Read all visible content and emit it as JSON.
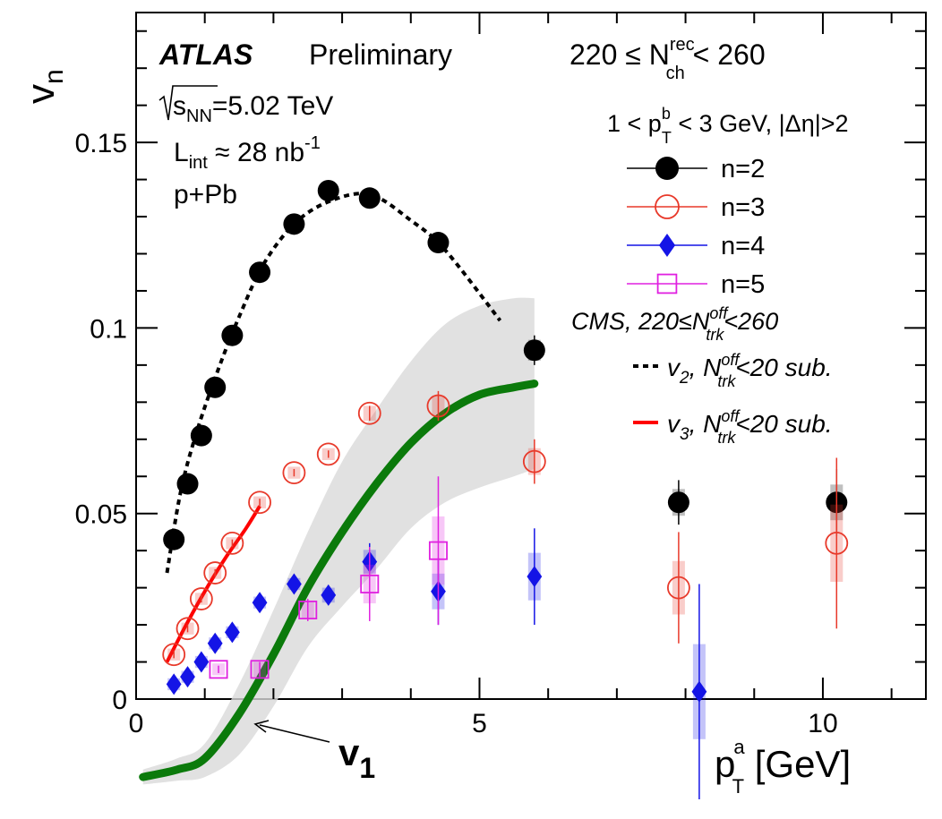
{
  "chart_data": {
    "type": "scatter",
    "xlim": [
      0,
      11.5
    ],
    "ylim": [
      0,
      0.185
    ],
    "xticks": [
      {
        "v": 0,
        "label": "0"
      },
      {
        "v": 5,
        "label": "5"
      },
      {
        "v": 10,
        "label": "10"
      }
    ],
    "yticks": [
      {
        "v": 0,
        "label": "0"
      },
      {
        "v": 0.05,
        "label": "0.05"
      },
      {
        "v": 0.1,
        "label": "0.1"
      },
      {
        "v": 0.15,
        "label": "0.15"
      }
    ],
    "ylabel": {
      "main": "v",
      "sub": "n"
    },
    "xlabel": {
      "main": "p",
      "sup": "a",
      "sub": "T",
      "unit": " [GeV]"
    },
    "labels": {
      "atlas": "ATLAS",
      "preliminary": "Preliminary",
      "energy": {
        "pre": "s",
        "sub": "NN",
        "post": "=5.02 TeV"
      },
      "lumi": {
        "pre": "L",
        "sub": "int",
        "post": " ≈ 28 nb",
        "sup": "-1"
      },
      "system": "p+Pb",
      "nch": {
        "pre": "220 ≤ N",
        "sup": "rec",
        "sub": "ch",
        "post": " < 260"
      },
      "ptb": {
        "pre": "1 < p",
        "sup": "b",
        "sub": "T",
        "post": " < 3 GeV, |Δη|>2"
      },
      "cms": {
        "pre": "CMS, 220≤N",
        "sup": "off",
        "sub": "trk",
        "post": "<260"
      },
      "v1": {
        "main": "v",
        "sub": "1"
      }
    },
    "legend": [
      {
        "name": "n=2",
        "marker": "filled-circle",
        "color": "#000000"
      },
      {
        "name": "n=3",
        "marker": "open-circle",
        "color": "#e8392a"
      },
      {
        "name": "n=4",
        "marker": "filled-diamond",
        "color": "#1414e6"
      },
      {
        "name": "n=5",
        "marker": "open-square",
        "color": "#e020e0"
      }
    ],
    "cms_legend": [
      {
        "main": "v",
        "sub": "2",
        "mid": ", N",
        "sup": "off",
        "sub2": "trk",
        "post": "<20 sub.",
        "color": "#000000",
        "dashed": true
      },
      {
        "main": "v",
        "sub": "3",
        "mid": ", N",
        "sup": "off",
        "sub2": "trk",
        "post": "<20 sub.",
        "color": "#ff0000",
        "dashed": false
      }
    ],
    "series": [
      {
        "name": "n=2",
        "color": "#000000",
        "marker": "filled-circle",
        "x": [
          0.55,
          0.75,
          0.95,
          1.15,
          1.4,
          1.8,
          2.3,
          2.8,
          3.4,
          4.4,
          5.8,
          7.9,
          10.2
        ],
        "y": [
          0.043,
          0.058,
          0.071,
          0.084,
          0.098,
          0.115,
          0.128,
          0.137,
          0.135,
          0.123,
          0.094,
          0.053,
          0.053
        ],
        "err": [
          0.001,
          0.001,
          0.001,
          0.001,
          0.001,
          0.001,
          0.001,
          0.001,
          0.001,
          0.001,
          0.004,
          0.006,
          0.009
        ]
      },
      {
        "name": "n=3",
        "color": "#e8392a",
        "marker": "open-circle",
        "x": [
          0.55,
          0.75,
          0.95,
          1.15,
          1.4,
          1.8,
          2.3,
          2.8,
          3.4,
          4.4,
          5.8,
          7.9,
          10.2
        ],
        "y": [
          0.012,
          0.019,
          0.027,
          0.034,
          0.042,
          0.053,
          0.061,
          0.066,
          0.077,
          0.079,
          0.064,
          0.03,
          0.042
        ],
        "err": [
          0.001,
          0.001,
          0.001,
          0.001,
          0.001,
          0.001,
          0.001,
          0.001,
          0.002,
          0.004,
          0.006,
          0.015,
          0.023
        ]
      },
      {
        "name": "n=4",
        "color": "#1414e6",
        "marker": "filled-diamond",
        "x": [
          0.55,
          0.75,
          0.95,
          1.15,
          1.4,
          1.8,
          2.3,
          2.8,
          3.4,
          4.4,
          5.8,
          8.2
        ],
        "y": [
          0.004,
          0.006,
          0.01,
          0.015,
          0.018,
          0.026,
          0.031,
          0.028,
          0.037,
          0.029,
          0.033,
          0.002
        ],
        "err": [
          0.001,
          0.001,
          0.001,
          0.001,
          0.001,
          0.001,
          0.001,
          0.002,
          0.005,
          0.009,
          0.013,
          0.029
        ]
      },
      {
        "name": "n=5",
        "color": "#e020e0",
        "marker": "open-square",
        "x": [
          1.2,
          1.8,
          2.5,
          3.4,
          4.4
        ],
        "y": [
          0.008,
          0.008,
          0.024,
          0.031,
          0.04
        ],
        "err": [
          0.001,
          0.002,
          0.003,
          0.01,
          0.02
        ]
      }
    ],
    "cms_curves": [
      {
        "name": "v2",
        "color": "#000000",
        "dashed": true,
        "x": [
          0.45,
          0.65,
          0.9,
          1.2,
          1.5,
          1.85,
          2.3,
          2.8,
          3.4,
          4.0,
          4.5,
          5.3
        ],
        "y": [
          0.034,
          0.056,
          0.073,
          0.089,
          0.103,
          0.117,
          0.128,
          0.134,
          0.136,
          0.129,
          0.121,
          0.102
        ]
      },
      {
        "name": "v3",
        "color": "#ff0000",
        "dashed": false,
        "x": [
          0.45,
          0.7,
          1.0,
          1.3,
          1.6,
          1.8
        ],
        "y": [
          0.01,
          0.019,
          0.029,
          0.038,
          0.046,
          0.052
        ]
      }
    ],
    "v1_curve": {
      "name": "v1",
      "color": "#0b7a0b",
      "x": [
        0.1,
        0.6,
        1.0,
        1.5,
        2.0,
        2.5,
        3.0,
        3.5,
        4.0,
        4.5,
        5.0,
        5.5,
        5.8
      ],
      "y": [
        -0.021,
        -0.019,
        -0.016,
        -0.004,
        0.012,
        0.03,
        0.045,
        0.058,
        0.069,
        0.077,
        0.082,
        0.084,
        0.085
      ],
      "band_upper": [
        -0.019,
        -0.016,
        -0.012,
        0.004,
        0.024,
        0.045,
        0.064,
        0.078,
        0.091,
        0.101,
        0.106,
        0.108,
        0.108
      ],
      "band_lower": [
        -0.023,
        -0.022,
        -0.021,
        -0.015,
        -0.002,
        0.014,
        0.025,
        0.035,
        0.046,
        0.053,
        0.057,
        0.06,
        0.062
      ]
    }
  }
}
